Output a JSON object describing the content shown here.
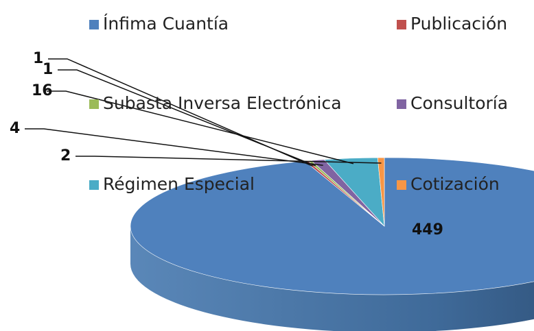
{
  "chart_data": {
    "type": "pie",
    "categories": [
      "Ínfima Cuantía",
      "Publicación",
      "Subasta Inversa Electrónica",
      "Consultoría",
      "Régimen Especial",
      "Cotización"
    ],
    "values": [
      449,
      1,
      1,
      4,
      16,
      2
    ],
    "colors": [
      "#4f81bd",
      "#c0504d",
      "#9bbb59",
      "#8064a2",
      "#4bacc6",
      "#f79646"
    ],
    "legend": "top"
  }
}
